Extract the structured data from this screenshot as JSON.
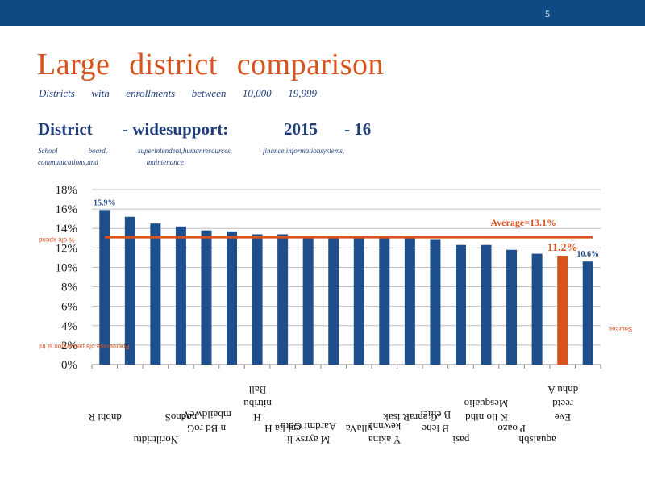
{
  "header": {
    "page_number": "5"
  },
  "slide": {
    "title_words": [
      "Large",
      "district",
      "comparison"
    ],
    "subtitle_words": [
      "Districts",
      "with",
      "enrollments",
      "between",
      "10,000",
      "19,999"
    ],
    "section_parts": [
      "District",
      "- widesupport:",
      "2015",
      "- 16"
    ],
    "scope_line1": [
      "School",
      "board,",
      "superintendent,humanresources,",
      "finance,informationsystems,"
    ],
    "scope_line2": [
      "communications,and",
      "maintenance"
    ]
  },
  "colors": {
    "bar": "#1f4e8c",
    "highlight_bar": "#d9531e",
    "average_line": "#d9531e",
    "axis_text": "#222222",
    "header_bar": "#0f4a85"
  },
  "chart_data": {
    "type": "bar",
    "y_axis": {
      "min": 0,
      "max": 18,
      "step": 2,
      "tick_labels": [
        "0%",
        "2%",
        "4%",
        "6%",
        "8%",
        "10%",
        "12%",
        "14%",
        "16%",
        "18%"
      ],
      "gridlines": true
    },
    "values": [
      15.9,
      15.2,
      14.5,
      14.2,
      13.8,
      13.7,
      13.4,
      13.4,
      13.2,
      13.2,
      13.2,
      13.1,
      13.0,
      12.9,
      12.3,
      12.3,
      11.8,
      11.4,
      11.2,
      10.6
    ],
    "highlight_index": 18,
    "data_labels": [
      {
        "index": 0,
        "text": "15.9%"
      },
      {
        "index": 18,
        "text": "11.2%"
      },
      {
        "index": 19,
        "text": "10.6%"
      }
    ],
    "average": {
      "value": 13.1,
      "label": "Average=13.1%"
    },
    "category_labels": [
      {
        "index": 0,
        "lines": [
          "dnbhi R"
        ]
      },
      {
        "index": 2,
        "lines": [
          "Noriltridtu"
        ]
      },
      {
        "index": 3,
        "lines": [
          "nodnoS"
        ]
      },
      {
        "index": 4,
        "lines": [
          "n Bd roG",
          "mbaildweV"
        ]
      },
      {
        "index": 6,
        "lines": [
          "H ",
          "nitribu",
          "Ball"
        ]
      },
      {
        "index": 7,
        "lines": [
          "enl lia H"
        ]
      },
      {
        "index": 8,
        "lines": [
          "M ayrsv li",
          "Aardmi Gdtu"
        ]
      },
      {
        "index": 10,
        "lines": [
          "yllaVa"
        ]
      },
      {
        "index": 11,
        "lines": [
          "Y akina",
          "kewnne"
        ]
      },
      {
        "index": 12,
        "lines": [
          "C enraR isak"
        ]
      },
      {
        "index": 13,
        "lines": [
          "B lehe",
          "B elliel"
        ]
      },
      {
        "index": 14,
        "lines": [
          "pasi"
        ]
      },
      {
        "index": 15,
        "lines": [
          "K llo nihd",
          "Mesqualio"
        ]
      },
      {
        "index": 16,
        "lines": [
          "P oazo"
        ]
      },
      {
        "index": 17,
        "lines": [
          "aqualsbh"
        ]
      },
      {
        "index": 18,
        "lines": [
          "Eve",
          "reetd",
          "dnhu A"
        ]
      }
    ],
    "left_margin_label_1": "% ofe xpend",
    "left_margin_label_2": "Ppercentde ofs pendingon st tni",
    "right_margin_label": "Sources"
  }
}
